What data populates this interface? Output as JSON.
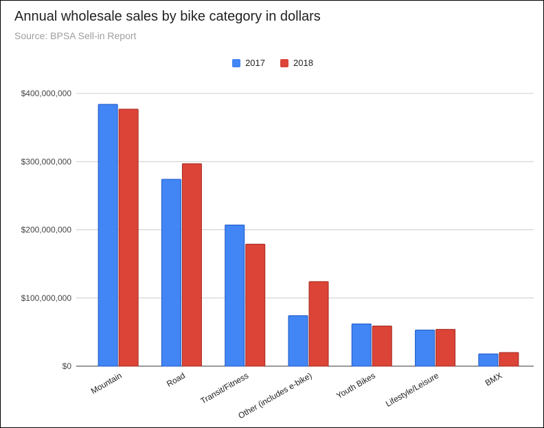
{
  "chart_data": {
    "type": "bar",
    "title": "Annual wholesale sales by bike category in dollars",
    "subtitle": "Source: BPSA Sell-in Report",
    "categories": [
      "Mountain",
      "Road",
      "Transit/Fitness",
      "Other (includes e-bike)",
      "Youth Bikes",
      "Lifestyle/Leisure",
      "BMX"
    ],
    "series": [
      {
        "name": "2017",
        "color": "#4285f4",
        "values": [
          384000000,
          274000000,
          207000000,
          74000000,
          62000000,
          53000000,
          18000000
        ]
      },
      {
        "name": "2018",
        "color": "#db4437",
        "values": [
          377000000,
          297000000,
          179000000,
          124000000,
          59000000,
          54000000,
          20000000
        ]
      }
    ],
    "ylim": [
      0,
      400000000
    ],
    "yticks": [
      {
        "value": 0,
        "label": "$0"
      },
      {
        "value": 100000000,
        "label": "$100,000,000"
      },
      {
        "value": 200000000,
        "label": "$200,000,000"
      },
      {
        "value": 300000000,
        "label": "$300,000,000"
      },
      {
        "value": 400000000,
        "label": "$400,000,000"
      }
    ],
    "grid": true,
    "legend_position": "top-center",
    "xlabel": "",
    "ylabel": ""
  }
}
